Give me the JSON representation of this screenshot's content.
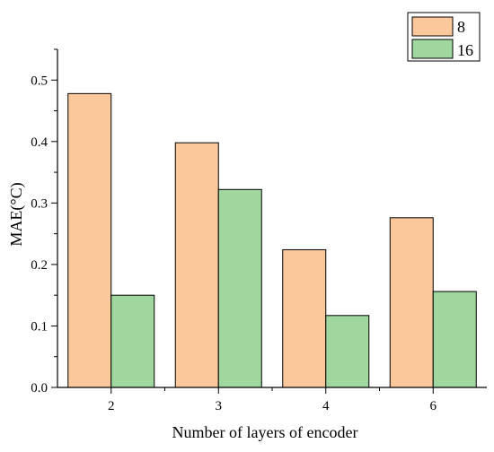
{
  "chart_data": {
    "type": "bar",
    "title": "",
    "xlabel": "Number of layers of encoder",
    "ylabel": "MAE(°C)",
    "categories": [
      "2",
      "3",
      "4",
      "6"
    ],
    "series": [
      {
        "name": "8",
        "values": [
          0.478,
          0.398,
          0.224,
          0.276
        ],
        "color": "#FBC89C"
      },
      {
        "name": "16",
        "values": [
          0.15,
          0.322,
          0.117,
          0.156
        ],
        "color": "#9FD79F"
      }
    ],
    "ylim": [
      0,
      0.55
    ],
    "yticks": [
      "0.0",
      "0.1",
      "0.2",
      "0.3",
      "0.4",
      "0.5"
    ],
    "grid": false,
    "legend_position": "top-right"
  }
}
